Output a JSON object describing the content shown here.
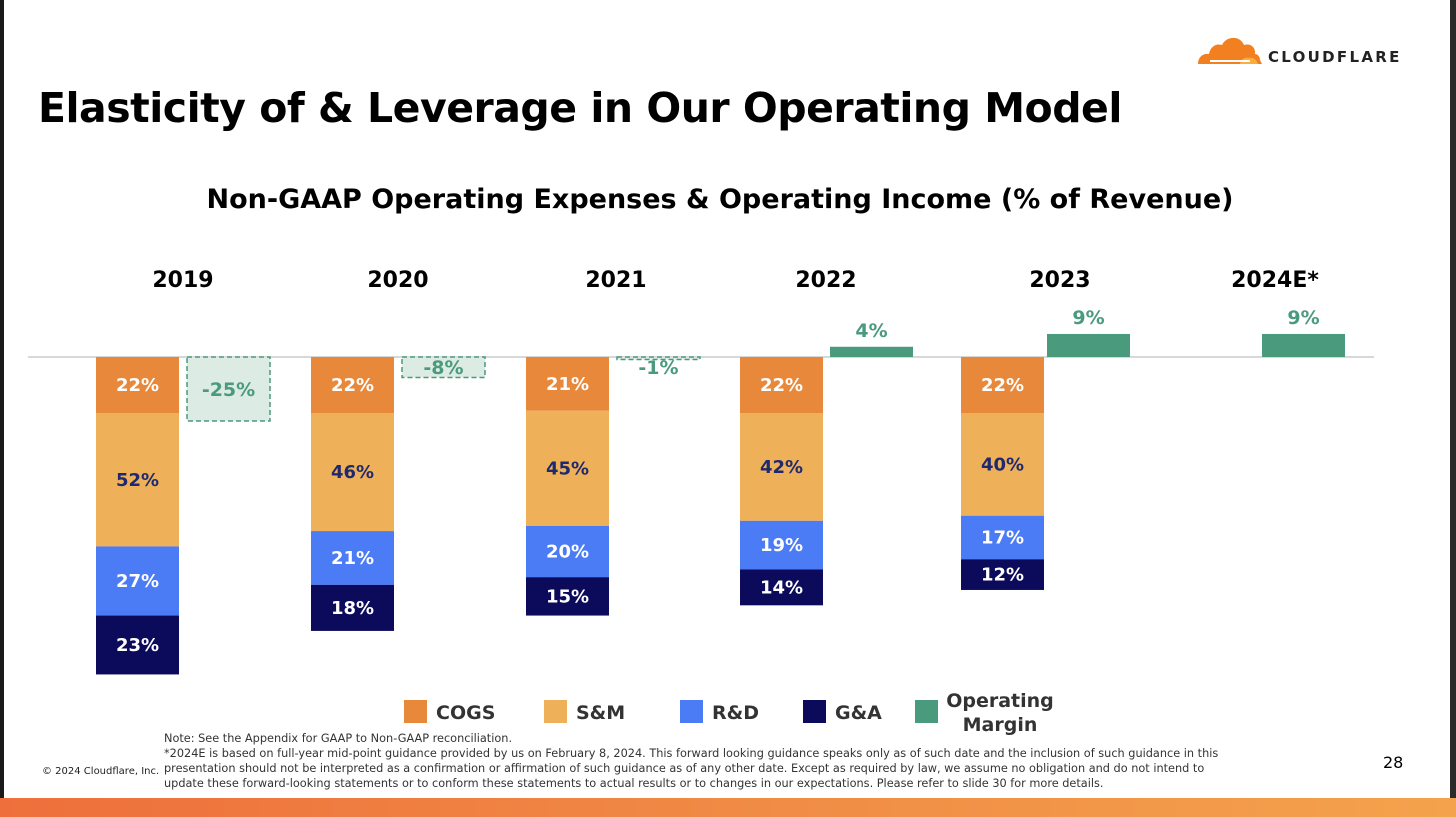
{
  "slide": {
    "title": "Elasticity of & Leverage in Our Operating Model",
    "page_number": "28",
    "copyright": "© 2024 Cloudflare, Inc.",
    "logo_text": "CLOUDFLARE",
    "note_line1": "Note: See the Appendix for GAAP to Non-GAAP reconciliation.",
    "note_line2": "*2024E is based on full-year mid-point guidance provided by us on February 8, 2024. This forward looking guidance speaks only as of such date and the inclusion of such guidance in this presentation should not be interpreted as a confirmation or affirmation of such guidance as of any other date. Except as required by law, we assume no obligation and do not intend to update these forward-looking statements or to conform these statements to actual results or to changes in our expectations. Please refer to slide 30 for more details."
  },
  "colors": {
    "cogs": "#e8883a",
    "sm": "#efb05a",
    "rd": "#4b7bf5",
    "ga": "#0c0a5a",
    "om": "#4a9a7e",
    "om_negative_fill": "#dcebe4",
    "baseline": "#cccccc"
  },
  "chart_data": {
    "type": "bar",
    "title": "Non-GAAP Operating Expenses & Operating Income (% of Revenue)",
    "unit": "%",
    "categories": [
      "2019",
      "2020",
      "2021",
      "2022",
      "2023",
      "2024E*"
    ],
    "series": [
      {
        "name": "COGS",
        "key": "cogs",
        "values": [
          22,
          22,
          21,
          22,
          22,
          null
        ]
      },
      {
        "name": "S&M",
        "key": "sm",
        "values": [
          52,
          46,
          45,
          42,
          40,
          null
        ]
      },
      {
        "name": "R&D",
        "key": "rd",
        "values": [
          27,
          21,
          20,
          19,
          17,
          null
        ]
      },
      {
        "name": "G&A",
        "key": "ga",
        "values": [
          23,
          18,
          15,
          14,
          12,
          null
        ]
      },
      {
        "name": "Operating Margin",
        "key": "om",
        "values": [
          -25,
          -8,
          -1,
          4,
          9,
          9
        ]
      }
    ],
    "legend_position": "bottom"
  }
}
